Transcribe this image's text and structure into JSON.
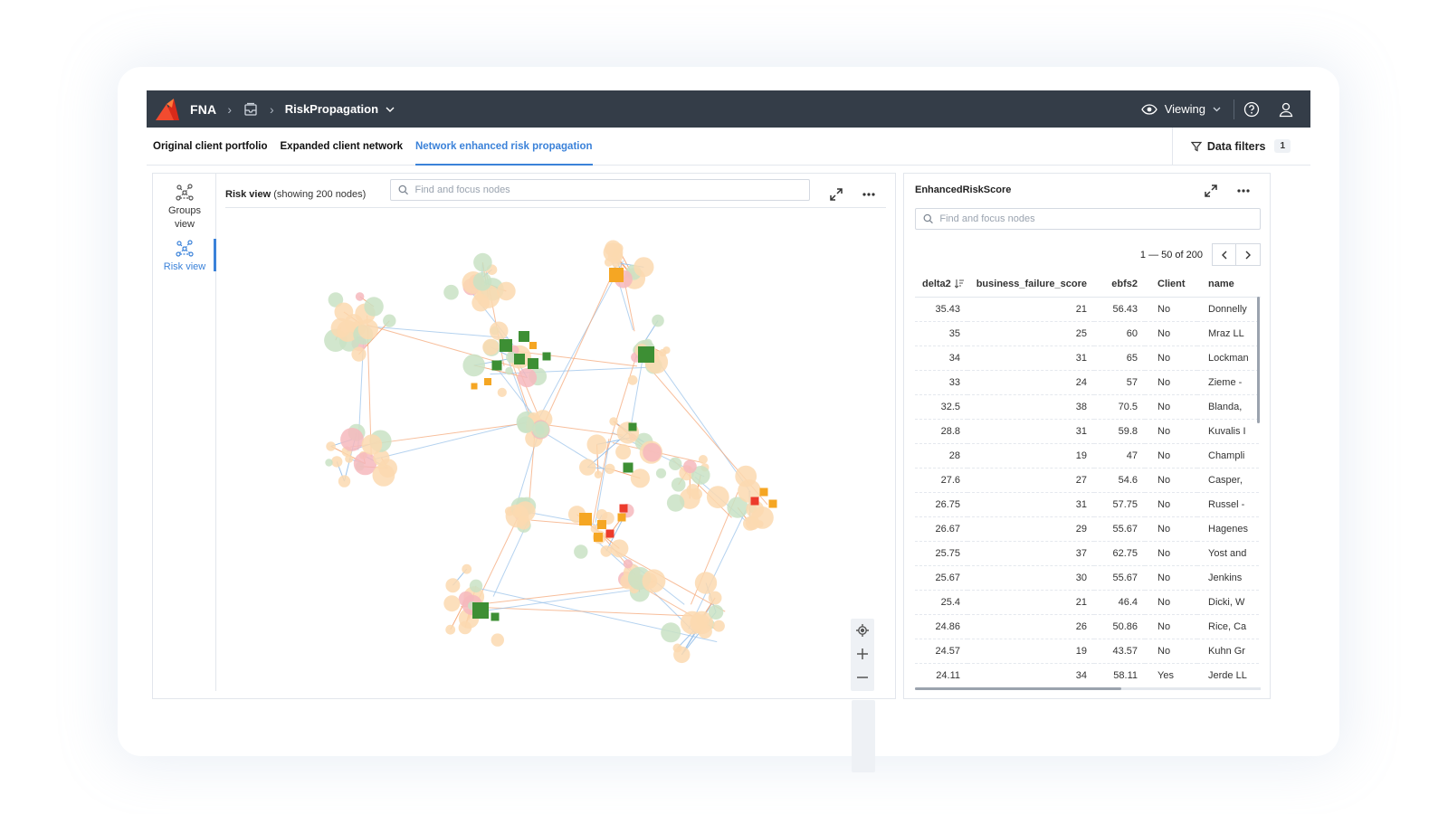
{
  "topbar": {
    "brand": "FNA",
    "project": "RiskPropagation",
    "viewing_label": "Viewing"
  },
  "tabs": [
    {
      "label": "Original client portfolio",
      "active": false
    },
    {
      "label": "Expanded client network",
      "active": false
    },
    {
      "label": "Network enhanced risk propagation",
      "active": true
    }
  ],
  "filters": {
    "label": "Data filters",
    "count": "1"
  },
  "left_rail": {
    "groups_label_1": "Groups",
    "groups_label_2": "view",
    "risk_label": "Risk view"
  },
  "graph": {
    "title": "Risk view",
    "subtitle": "(showing 200 nodes)",
    "search_placeholder": "Find and focus nodes"
  },
  "table_panel": {
    "title": "EnhancedRiskScore",
    "search_placeholder": "Find and focus nodes",
    "pagination": "1 — 50 of 200",
    "columns": [
      "delta2",
      "business_failure_score",
      "ebfs2",
      "Client",
      "name"
    ],
    "rows": [
      [
        "35.43",
        "21",
        "56.43",
        "No",
        "Donnelly"
      ],
      [
        "35",
        "25",
        "60",
        "No",
        "Mraz LL"
      ],
      [
        "34",
        "31",
        "65",
        "No",
        "Lockman"
      ],
      [
        "33",
        "24",
        "57",
        "No",
        "Zieme -"
      ],
      [
        "32.5",
        "38",
        "70.5",
        "No",
        "Blanda,"
      ],
      [
        "28.8",
        "31",
        "59.8",
        "No",
        "Kuvalis I"
      ],
      [
        "28",
        "19",
        "47",
        "No",
        "Champli"
      ],
      [
        "27.6",
        "27",
        "54.6",
        "No",
        "Casper,"
      ],
      [
        "26.75",
        "31",
        "57.75",
        "No",
        "Russel -"
      ],
      [
        "26.67",
        "29",
        "55.67",
        "No",
        "Hagenes"
      ],
      [
        "25.75",
        "37",
        "62.75",
        "No",
        "Yost and"
      ],
      [
        "25.67",
        "30",
        "55.67",
        "No",
        "Jenkins"
      ],
      [
        "25.4",
        "21",
        "46.4",
        "No",
        "Dicki, W"
      ],
      [
        "24.86",
        "26",
        "50.86",
        "No",
        "Rice, Ca"
      ],
      [
        "24.57",
        "19",
        "43.57",
        "No",
        "Kuhn Gr"
      ],
      [
        "24.11",
        "34",
        "58.11",
        "Yes",
        "Jerde LL"
      ]
    ]
  },
  "colors": {
    "topbar": "#343d48",
    "accent": "#3b82d9",
    "node_peach": "#fcd9b0",
    "node_green_light": "#c9e2c4",
    "node_pink": "#f6b9bd",
    "node_green_dark": "#3d8f34",
    "node_orange": "#f5a623",
    "node_red": "#ec3b2c",
    "edge": "#9cc3ea",
    "edge_orange": "#f5a97a"
  }
}
